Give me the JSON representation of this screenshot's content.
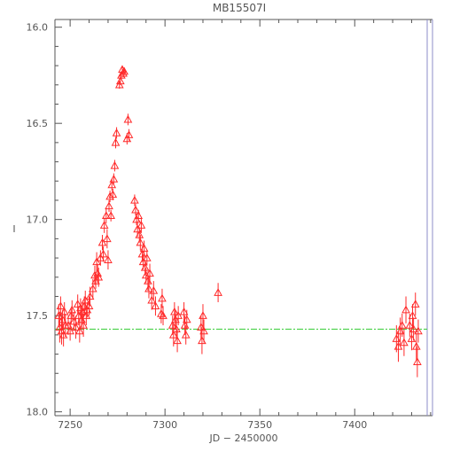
{
  "chart_data": {
    "type": "scatter",
    "title": "MB15507I",
    "xlabel": "JD − 2450000",
    "ylabel": "I",
    "xlim": [
      7242,
      7441
    ],
    "ylim": [
      18.02,
      15.96
    ],
    "y_inverted": true,
    "x_ticks": [
      7250,
      7300,
      7350,
      7400
    ],
    "x_tick_labels": [
      "7250",
      "7300",
      "7350",
      "7400"
    ],
    "y_ticks": [
      16.0,
      16.5,
      17.0,
      17.5,
      18.0
    ],
    "y_tick_labels": [
      "16.0",
      "16.5",
      "17.0",
      "17.5",
      "18.0"
    ],
    "colors": {
      "points": "#ff2a2a",
      "baseline": "#33cc33",
      "axes": "#555555",
      "right_axis": "#8c8cc8"
    },
    "marker": "open-triangle",
    "grid": false,
    "baseline": {
      "y": 17.57
    },
    "series": [
      {
        "points": [
          [
            7244,
            17.5,
            0.06
          ],
          [
            7244.5,
            17.56,
            0.08
          ],
          [
            7245,
            17.45,
            0.05
          ],
          [
            7245.5,
            17.58,
            0.07
          ],
          [
            7246,
            17.52,
            0.05
          ],
          [
            7246.5,
            17.6,
            0.06
          ],
          [
            7247,
            17.48,
            0.05
          ],
          [
            7247.5,
            17.55,
            0.06
          ],
          [
            7249,
            17.55,
            0.05
          ],
          [
            7250,
            17.58,
            0.05
          ],
          [
            7250.5,
            17.5,
            0.04
          ],
          [
            7251,
            17.47,
            0.05
          ],
          [
            7252,
            17.53,
            0.05
          ],
          [
            7253,
            17.56,
            0.06
          ],
          [
            7254,
            17.44,
            0.05
          ],
          [
            7254.5,
            17.5,
            0.05
          ],
          [
            7255,
            17.58,
            0.06
          ],
          [
            7255.5,
            17.46,
            0.05
          ],
          [
            7256,
            17.52,
            0.05
          ],
          [
            7256.5,
            17.48,
            0.05
          ],
          [
            7257,
            17.55,
            0.06
          ],
          [
            7257.5,
            17.45,
            0.05
          ],
          [
            7258,
            17.42,
            0.05
          ],
          [
            7258.5,
            17.5,
            0.05
          ],
          [
            7259,
            17.47,
            0.04
          ],
          [
            7260,
            17.45,
            0.05
          ],
          [
            7260.5,
            17.4,
            0.05
          ],
          [
            7262,
            17.36,
            0.05
          ],
          [
            7263,
            17.29,
            0.05
          ],
          [
            7263.5,
            17.32,
            0.04
          ],
          [
            7264,
            17.22,
            0.05
          ],
          [
            7264.5,
            17.28,
            0.05
          ],
          [
            7265,
            17.3,
            0.05
          ],
          [
            7266,
            17.2,
            0.04
          ],
          [
            7267,
            17.12,
            0.04
          ],
          [
            7267.5,
            17.18,
            0.04
          ],
          [
            7268,
            17.03,
            0.04
          ],
          [
            7269,
            16.98,
            0.04
          ],
          [
            7269.5,
            17.1,
            0.05
          ],
          [
            7270,
            17.21,
            0.05
          ],
          [
            7270.5,
            16.93,
            0.03
          ],
          [
            7271,
            16.88,
            0.03
          ],
          [
            7271.5,
            16.98,
            0.03
          ],
          [
            7272,
            16.82,
            0.03
          ],
          [
            7272.5,
            16.87,
            0.03
          ],
          [
            7273,
            16.79,
            0.03
          ],
          [
            7273.5,
            16.72,
            0.03
          ],
          [
            7274,
            16.6,
            0.03
          ],
          [
            7274.5,
            16.55,
            0.03
          ],
          [
            7276,
            16.3,
            0.02
          ],
          [
            7276.5,
            16.28,
            0.02
          ],
          [
            7277,
            16.25,
            0.02
          ],
          [
            7277.5,
            16.22,
            0.02
          ],
          [
            7278,
            16.24,
            0.02
          ],
          [
            7278.5,
            16.23,
            0.02
          ],
          [
            7280,
            16.58,
            0.03
          ],
          [
            7280.5,
            16.48,
            0.03
          ],
          [
            7281,
            16.56,
            0.03
          ],
          [
            7284,
            16.9,
            0.03
          ],
          [
            7284.5,
            16.95,
            0.03
          ],
          [
            7285,
            17.0,
            0.03
          ],
          [
            7285.5,
            17.05,
            0.04
          ],
          [
            7286,
            16.98,
            0.03
          ],
          [
            7286.5,
            17.08,
            0.04
          ],
          [
            7287,
            17.12,
            0.04
          ],
          [
            7287.5,
            17.03,
            0.04
          ],
          [
            7288,
            17.18,
            0.04
          ],
          [
            7288.5,
            17.22,
            0.04
          ],
          [
            7289,
            17.15,
            0.04
          ],
          [
            7289.5,
            17.25,
            0.04
          ],
          [
            7290,
            17.29,
            0.04
          ],
          [
            7290.5,
            17.2,
            0.04
          ],
          [
            7291,
            17.32,
            0.05
          ],
          [
            7291.5,
            17.36,
            0.05
          ],
          [
            7292,
            17.28,
            0.05
          ],
          [
            7293,
            17.42,
            0.05
          ],
          [
            7294,
            17.37,
            0.05
          ],
          [
            7295,
            17.45,
            0.05
          ],
          [
            7298,
            17.49,
            0.05
          ],
          [
            7298.5,
            17.41,
            0.05
          ],
          [
            7299,
            17.5,
            0.05
          ],
          [
            7304,
            17.55,
            0.05
          ],
          [
            7304.5,
            17.6,
            0.06
          ],
          [
            7305,
            17.48,
            0.05
          ],
          [
            7305.5,
            17.52,
            0.05
          ],
          [
            7306,
            17.57,
            0.05
          ],
          [
            7306.5,
            17.63,
            0.06
          ],
          [
            7307,
            17.5,
            0.05
          ],
          [
            7310,
            17.48,
            0.05
          ],
          [
            7310.5,
            17.55,
            0.05
          ],
          [
            7311,
            17.6,
            0.05
          ],
          [
            7311.5,
            17.52,
            0.05
          ],
          [
            7319,
            17.56,
            0.06
          ],
          [
            7319.5,
            17.63,
            0.07
          ],
          [
            7320,
            17.5,
            0.06
          ],
          [
            7320.5,
            17.58,
            0.06
          ],
          [
            7328,
            17.38,
            0.05
          ],
          [
            7422,
            17.62,
            0.07
          ],
          [
            7423,
            17.66,
            0.08
          ],
          [
            7424,
            17.58,
            0.07
          ],
          [
            7425,
            17.55,
            0.06
          ],
          [
            7426,
            17.64,
            0.07
          ],
          [
            7427,
            17.47,
            0.07
          ],
          [
            7429,
            17.55,
            0.06
          ],
          [
            7430,
            17.62,
            0.06
          ],
          [
            7430.5,
            17.5,
            0.06
          ],
          [
            7431,
            17.57,
            0.06
          ],
          [
            7432,
            17.44,
            0.06
          ],
          [
            7432.5,
            17.66,
            0.07
          ],
          [
            7433,
            17.74,
            0.08
          ],
          [
            7433.5,
            17.58,
            0.06
          ]
        ]
      }
    ]
  }
}
